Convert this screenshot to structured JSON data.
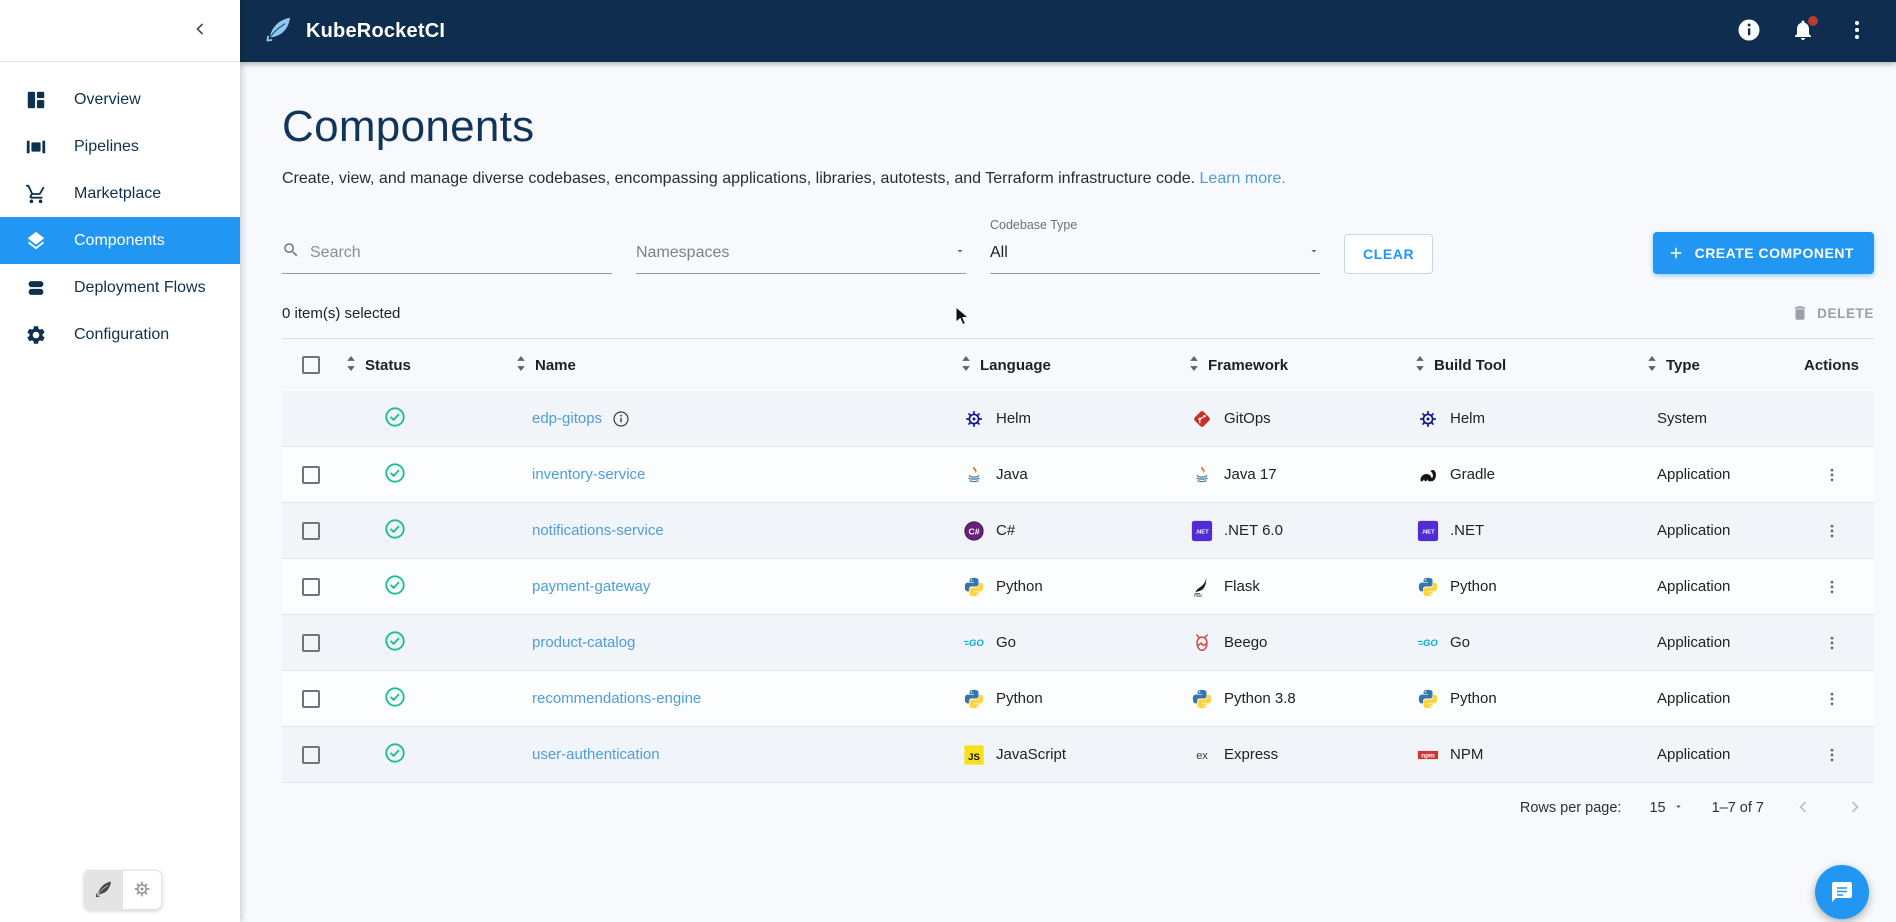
{
  "colors": {
    "accent": "#2196F3",
    "topbar_bg": "#0F2E4F",
    "success": "#18BE94",
    "link": "#4D9EDB"
  },
  "topbar": {
    "title": "KubeRocketCI",
    "icons": [
      "info",
      "notifications",
      "kebab-menu"
    ]
  },
  "sidebar": {
    "collapse_icon": "chevron-left",
    "items": [
      {
        "label": "Overview",
        "icon": "overview",
        "selected": false
      },
      {
        "label": "Pipelines",
        "icon": "pipelines",
        "selected": false
      },
      {
        "label": "Marketplace",
        "icon": "marketplace",
        "selected": false
      },
      {
        "label": "Components",
        "icon": "components",
        "selected": true
      },
      {
        "label": "Deployment Flows",
        "icon": "deployment-flows",
        "selected": false
      },
      {
        "label": "Configuration",
        "icon": "configuration",
        "selected": false
      }
    ],
    "footer_toggle": [
      "quill",
      "kubernetes"
    ]
  },
  "page": {
    "title": "Components",
    "description": "Create, view, and manage diverse codebases, encompassing applications, libraries, autotests, and Terraform infrastructure code.",
    "learn_more": "Learn more."
  },
  "filters": {
    "search_placeholder": "Search",
    "namespaces_placeholder": "Namespaces",
    "codebase_type_label": "Codebase Type",
    "codebase_type_value": "All",
    "clear_label": "CLEAR"
  },
  "toolbar": {
    "create_label": "CREATE COMPONENT",
    "delete_label": "DELETE",
    "selection_text": "0 item(s) selected"
  },
  "table": {
    "columns": [
      {
        "label": "Status",
        "sortable": true
      },
      {
        "label": "Name",
        "sortable": true
      },
      {
        "label": "Language",
        "sortable": true
      },
      {
        "label": "Framework",
        "sortable": true
      },
      {
        "label": "Build Tool",
        "sortable": true
      },
      {
        "label": "Type",
        "sortable": true
      },
      {
        "label": "Actions",
        "sortable": false,
        "align": "center"
      }
    ],
    "rows": [
      {
        "name": "edp-gitops",
        "checkbox": false,
        "status": "success",
        "info": true,
        "language": {
          "icon": "helm",
          "label": "Helm"
        },
        "framework": {
          "icon": "gitops",
          "label": "GitOps"
        },
        "build_tool": {
          "icon": "helm",
          "label": "Helm"
        },
        "type": "System",
        "actions": false
      },
      {
        "name": "inventory-service",
        "checkbox": true,
        "status": "success",
        "info": false,
        "language": {
          "icon": "java",
          "label": "Java"
        },
        "framework": {
          "icon": "java",
          "label": "Java 17"
        },
        "build_tool": {
          "icon": "gradle",
          "label": "Gradle"
        },
        "type": "Application",
        "actions": true
      },
      {
        "name": "notifications-service",
        "checkbox": true,
        "status": "success",
        "info": false,
        "language": {
          "icon": "csharp",
          "label": "C#"
        },
        "framework": {
          "icon": "dotnet",
          "label": ".NET 6.0"
        },
        "build_tool": {
          "icon": "dotnet",
          "label": ".NET"
        },
        "type": "Application",
        "actions": true
      },
      {
        "name": "payment-gateway",
        "checkbox": true,
        "status": "success",
        "info": false,
        "language": {
          "icon": "python",
          "label": "Python"
        },
        "framework": {
          "icon": "flask",
          "label": "Flask"
        },
        "build_tool": {
          "icon": "python",
          "label": "Python"
        },
        "type": "Application",
        "actions": true
      },
      {
        "name": "product-catalog",
        "checkbox": true,
        "status": "success",
        "info": false,
        "language": {
          "icon": "go",
          "label": "Go"
        },
        "framework": {
          "icon": "beego",
          "label": "Beego"
        },
        "build_tool": {
          "icon": "go",
          "label": "Go"
        },
        "type": "Application",
        "actions": true
      },
      {
        "name": "recommendations-engine",
        "checkbox": true,
        "status": "success",
        "info": false,
        "language": {
          "icon": "python",
          "label": "Python"
        },
        "framework": {
          "icon": "python",
          "label": "Python 3.8"
        },
        "build_tool": {
          "icon": "python",
          "label": "Python"
        },
        "type": "Application",
        "actions": true
      },
      {
        "name": "user-authentication",
        "checkbox": true,
        "status": "success",
        "info": false,
        "language": {
          "icon": "javascript",
          "label": "JavaScript"
        },
        "framework": {
          "icon": "express",
          "label": "Express"
        },
        "build_tool": {
          "icon": "npm",
          "label": "NPM"
        },
        "type": "Application",
        "actions": true
      }
    ]
  },
  "pagination": {
    "rows_per_page_label": "Rows per page:",
    "rows_per_page_value": "15",
    "range_text": "1–7 of 7"
  }
}
